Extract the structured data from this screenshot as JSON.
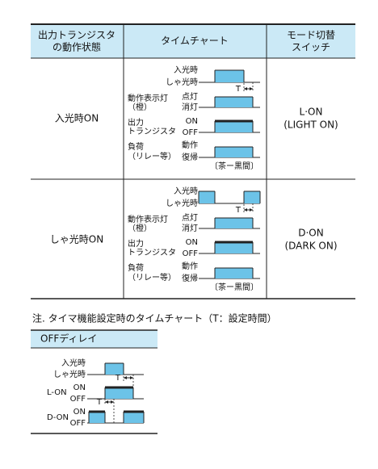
{
  "table": {
    "header": [
      [
        "出力トランジスタ",
        "の動作状態"
      ],
      [
        "タイムチャート"
      ],
      [
        "モード切替",
        "スイッチ"
      ]
    ],
    "rows": [
      {
        "state": "入光時ON",
        "mode": [
          "L·ON",
          "(LIGHT ON)"
        ],
        "chart": {
          "light": "入光時",
          "dark": "しゃ光時",
          "t": "T",
          "indicator": [
            "動作表示灯",
            "（橙）"
          ],
          "lit": "点灯",
          "unlit": "消灯",
          "transistor": [
            "出力",
            "トランジスタ"
          ],
          "on": "ON",
          "off": "OFF",
          "load": [
            "負荷",
            "（リレー等）"
          ],
          "operate": "動作",
          "reset": "復帰",
          "wires": "〔茶ー黒間〕"
        }
      },
      {
        "state": "しゃ光時ON",
        "mode": [
          "D·ON",
          "(DARK ON)"
        ],
        "chart": {
          "light": "入光時",
          "dark": "しゃ光時",
          "t": "T",
          "indicator": [
            "動作表示灯",
            "（橙）"
          ],
          "lit": "点灯",
          "unlit": "消灯",
          "transistor": [
            "出力",
            "トランジスタ"
          ],
          "on": "ON",
          "off": "OFF",
          "load": [
            "負荷",
            "（リレー等）"
          ],
          "operate": "動作",
          "reset": "復帰",
          "wires": "〔茶ー黒間〕"
        }
      }
    ]
  },
  "note": {
    "text": "注. タイマ機能設定時のタイムチャート（T：設定時間）",
    "title": "OFFディレイ",
    "light": "入光時",
    "dark": "しゃ光時",
    "t": "T",
    "l_on": "L-ON",
    "d_on": "D-ON",
    "on": "ON",
    "off": "OFF"
  }
}
